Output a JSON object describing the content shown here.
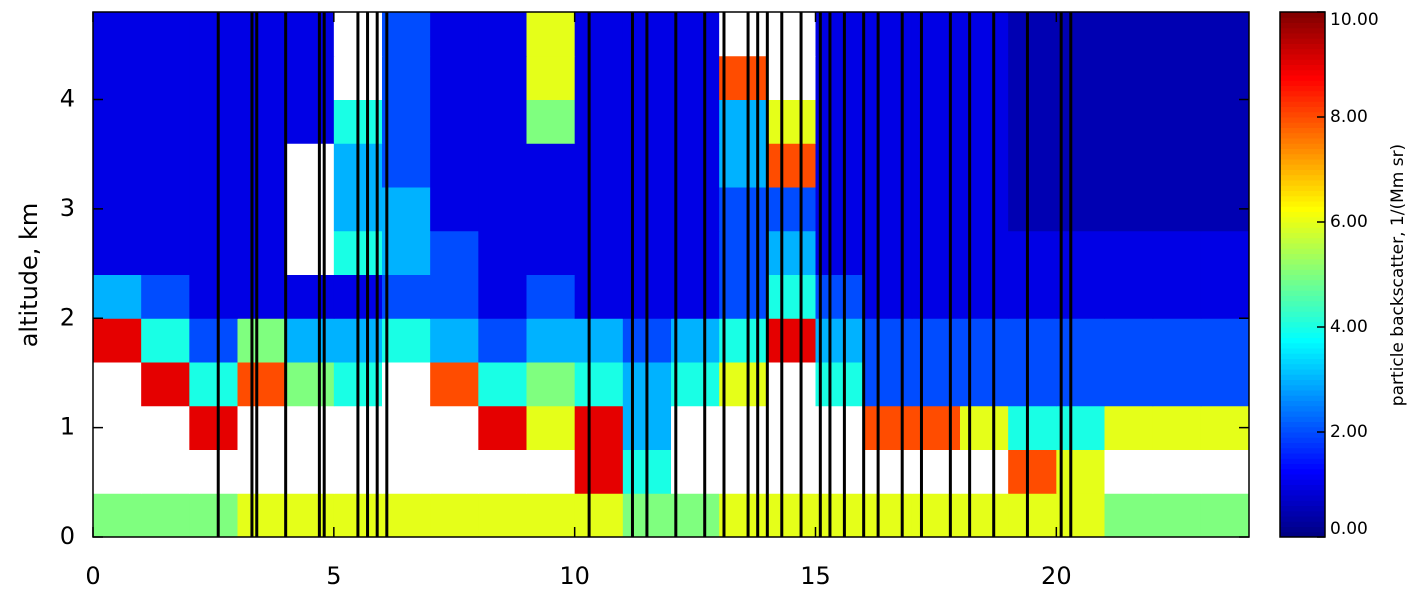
{
  "chart_data": {
    "type": "heatmap",
    "ylabel": "altitude, km",
    "colorbar_label": "particle backscatter, 1/(Mm sr)",
    "x_edges": [
      0,
      1,
      2,
      3,
      4,
      5,
      6,
      7,
      8,
      9,
      10,
      11,
      12,
      13,
      14,
      15,
      16,
      17,
      18,
      19,
      20,
      21,
      22,
      23,
      24
    ],
    "y_edges": [
      0,
      0.4,
      0.8,
      1.2,
      1.6,
      2.0,
      2.4,
      2.8,
      3.2,
      3.6,
      4.0,
      4.4,
      4.8
    ],
    "z": [
      [
        5,
        5,
        5,
        6,
        6,
        6,
        6,
        6,
        6,
        6,
        6,
        5,
        5,
        6,
        6,
        6,
        6,
        6,
        6,
        6,
        6,
        5,
        5,
        5
      ],
      [
        12,
        12,
        12,
        12,
        12,
        12,
        12,
        12,
        12,
        12,
        9,
        4,
        12,
        12,
        12,
        12,
        12,
        12,
        12,
        8,
        6,
        12,
        12,
        12
      ],
      [
        12,
        12,
        9,
        12,
        12,
        12,
        12,
        12,
        9,
        6,
        9,
        3,
        12,
        12,
        12,
        12,
        8,
        8,
        6,
        4,
        4,
        6,
        6,
        6
      ],
      [
        12,
        9,
        4,
        8,
        5,
        4,
        12,
        8,
        4,
        5,
        4,
        3,
        4,
        6,
        12,
        4,
        2,
        2,
        2,
        2,
        2,
        2,
        2,
        2
      ],
      [
        9,
        4,
        2,
        5,
        3,
        3,
        4,
        3,
        2,
        3,
        3,
        2,
        3,
        4,
        9,
        3,
        2,
        2,
        2,
        2,
        2,
        2,
        2,
        2
      ],
      [
        3,
        2,
        1,
        1,
        1,
        1,
        2,
        2,
        1,
        2,
        1,
        1,
        1,
        2,
        4,
        2,
        1,
        1,
        1,
        1,
        1,
        1,
        1,
        1
      ],
      [
        1,
        1,
        1,
        1,
        12,
        4,
        3,
        2,
        1,
        1,
        1,
        1,
        1,
        2,
        3,
        1,
        1,
        1,
        1,
        1,
        1,
        1,
        1,
        1
      ],
      [
        1,
        1,
        1,
        1,
        12,
        3,
        3,
        1,
        1,
        1,
        1,
        1,
        1,
        2,
        2,
        1,
        1,
        1,
        1,
        0.5,
        0.5,
        0.5,
        0.5,
        0.5
      ],
      [
        1,
        1,
        1,
        1,
        12,
        3,
        2,
        1,
        1,
        1,
        1,
        1,
        1,
        3,
        8,
        1,
        1,
        1,
        1,
        0.5,
        0.5,
        0.5,
        0.5,
        0.5
      ],
      [
        1,
        1,
        1,
        1,
        1,
        4,
        2,
        1,
        1,
        5,
        1,
        1,
        1,
        3,
        6,
        1,
        1,
        1,
        1,
        0.5,
        0.5,
        0.5,
        0.5,
        0.5
      ],
      [
        1,
        1,
        1,
        1,
        1,
        12,
        2,
        1,
        1,
        6,
        1,
        1,
        1,
        8,
        12,
        1,
        1,
        1,
        1,
        0.5,
        0.5,
        0.5,
        0.5,
        0.5
      ],
      [
        1,
        1,
        1,
        1,
        1,
        12,
        2,
        1,
        1,
        6,
        1,
        1,
        1,
        12,
        12,
        1,
        1,
        1,
        1,
        0.5,
        0.5,
        0.5,
        0.5,
        0.5
      ]
    ],
    "missing_times": [
      2.6,
      3.3,
      3.4,
      4.0,
      4.7,
      4.8,
      5.5,
      5.7,
      5.9,
      6.1,
      10.3,
      11.2,
      11.5,
      12.1,
      12.7,
      13.1,
      13.6,
      13.8,
      14.0,
      14.3,
      14.7,
      15.1,
      15.3,
      15.6,
      16.0,
      16.3,
      16.8,
      17.2,
      17.8,
      18.2,
      18.7,
      19.4,
      20.1,
      20.3
    ],
    "missing_color": "#000000",
    "xlim": [
      0,
      24
    ],
    "xticks": [
      0,
      5,
      10,
      15,
      20
    ],
    "ylim": [
      0,
      4.8
    ],
    "yticks": [
      0,
      1,
      2,
      3,
      4
    ],
    "zlim": [
      0,
      10
    ],
    "zticks": [
      {
        "value": 0,
        "label": "0.00"
      },
      {
        "value": 2,
        "label": "2.00"
      },
      {
        "value": 4,
        "label": "4.00"
      },
      {
        "value": 6,
        "label": "6.00"
      },
      {
        "value": 8,
        "label": "8.00"
      },
      {
        "value": 10,
        "label": "10.00"
      }
    ],
    "colormap": [
      "#00007f",
      "#0000ff",
      "#007fff",
      "#00ffff",
      "#7fff7f",
      "#ffff00",
      "#ff7f00",
      "#ff0000",
      "#7f0000"
    ],
    "over_color": "#ffffff"
  }
}
